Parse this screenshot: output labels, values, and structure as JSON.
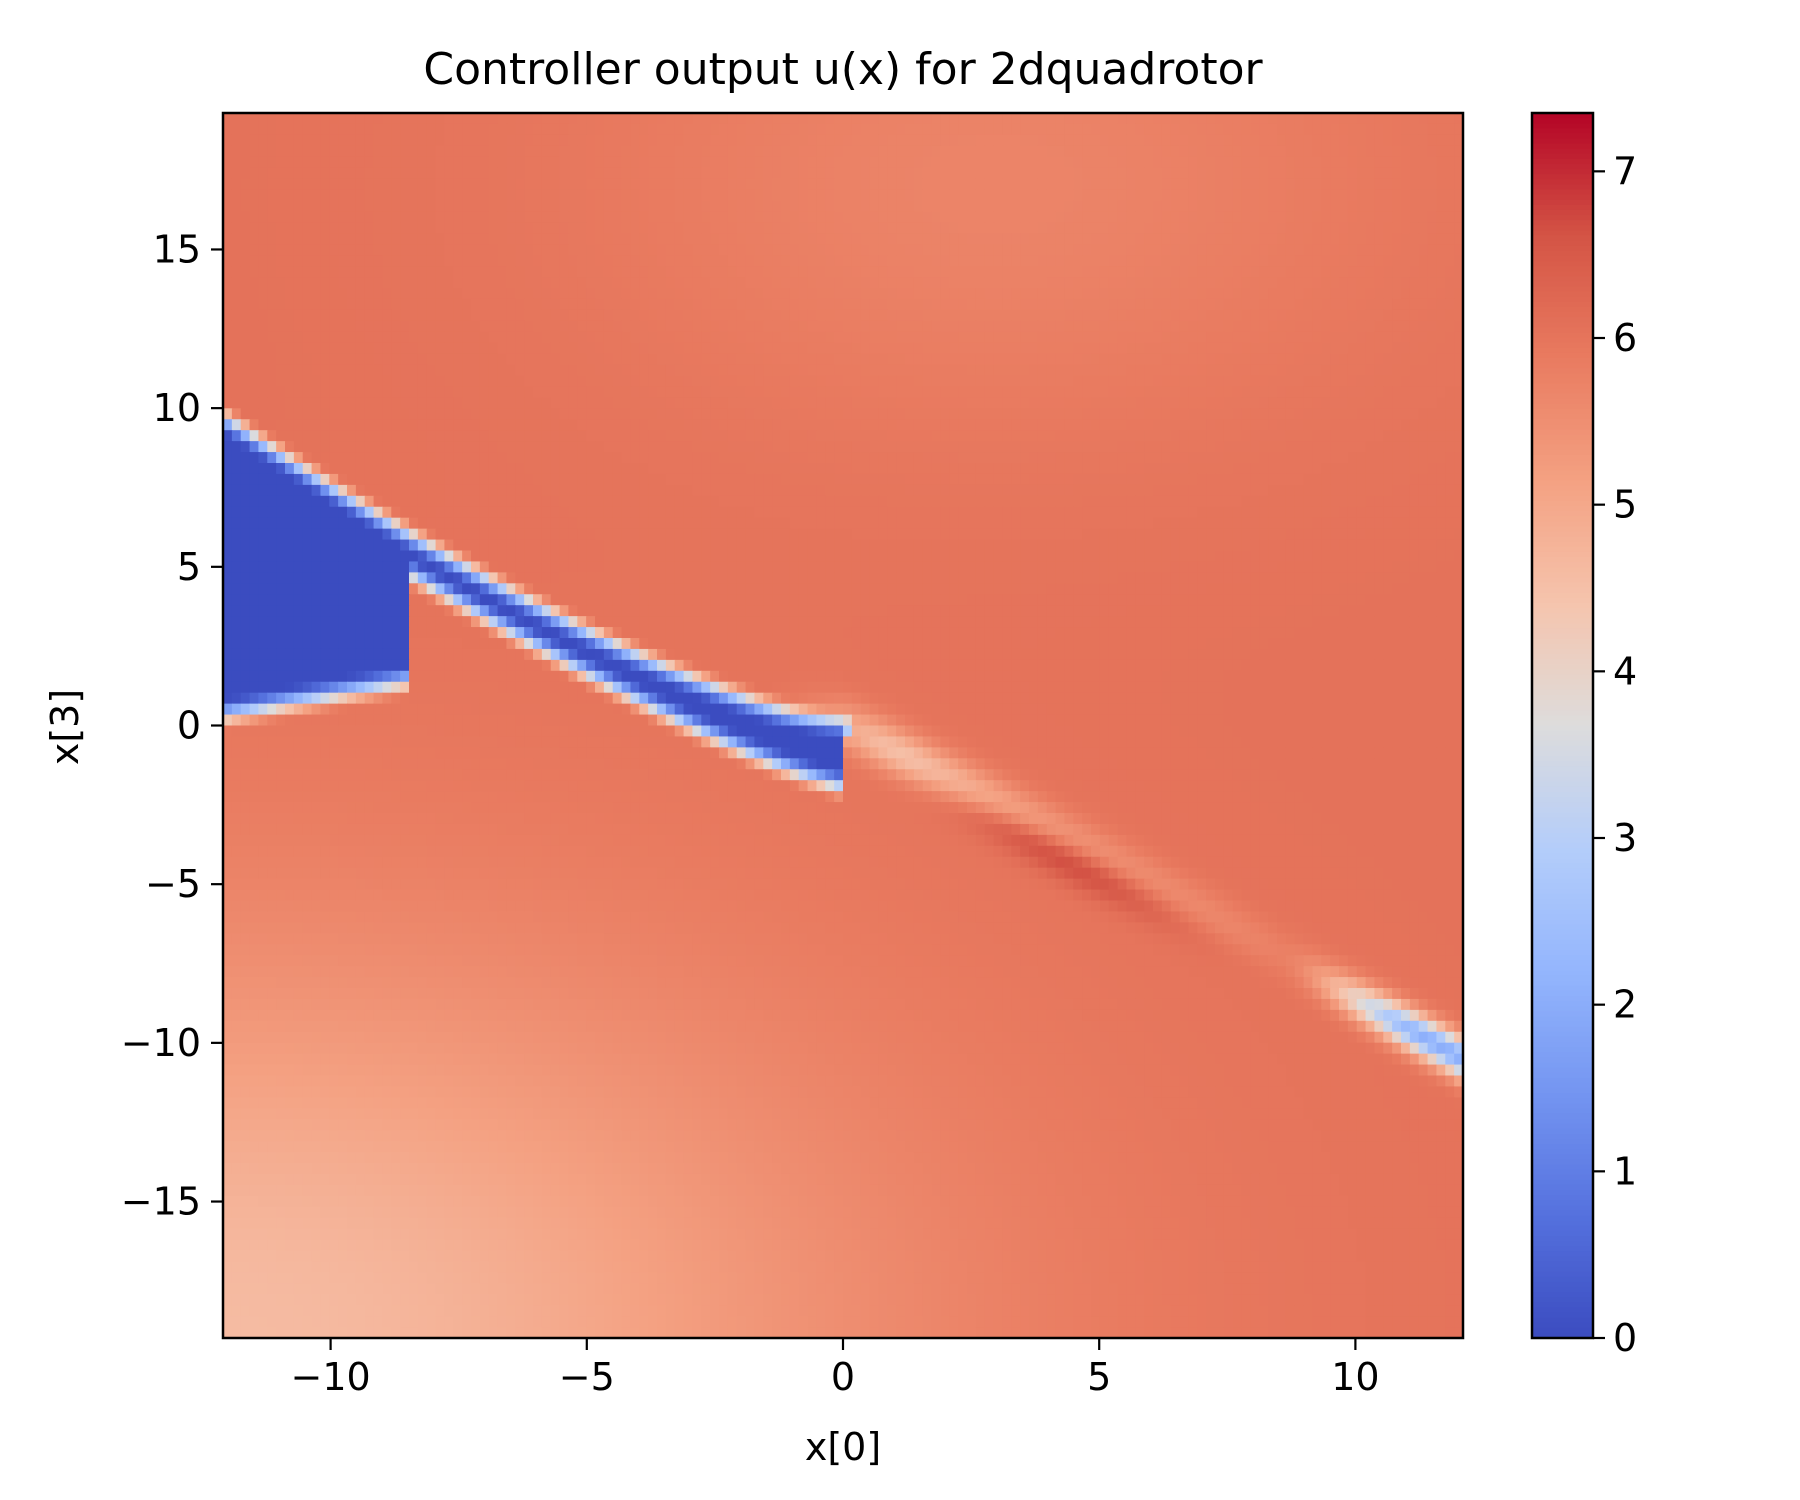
{
  "chart_data": {
    "type": "heatmap",
    "title": "Controller output u(x) for 2dquadrotor",
    "xlabel": "x[0]",
    "ylabel": "x[3]",
    "xlim": [
      -12.1,
      12.1
    ],
    "ylim": [
      -19.3,
      19.3
    ],
    "x_ticks": [
      -10,
      -5,
      0,
      5,
      10
    ],
    "x_tick_labels": [
      "−10",
      "−5",
      "0",
      "5",
      "10"
    ],
    "y_ticks": [
      -15,
      -10,
      -5,
      0,
      5,
      10,
      15
    ],
    "y_tick_labels": [
      "−15",
      "−10",
      "−5",
      "0",
      "5",
      "10",
      "15"
    ],
    "colormap": "coolwarm",
    "colorbar": {
      "vmin": 0,
      "vmax": 7.35,
      "ticks": [
        0,
        1,
        2,
        3,
        4,
        5,
        6,
        7
      ],
      "tick_labels": [
        "0",
        "1",
        "2",
        "3",
        "4",
        "5",
        "6",
        "7"
      ]
    },
    "grid": false,
    "field_description": {
      "background_value": 6.05,
      "low_region_value": 0.0,
      "peak_value": 7.3,
      "separatrix_line": {
        "x_start": -12,
        "y_start": 9.6,
        "x_end": 12,
        "y_end": -9.7
      }
    },
    "z_grid_shape": [
      140,
      112
    ]
  }
}
